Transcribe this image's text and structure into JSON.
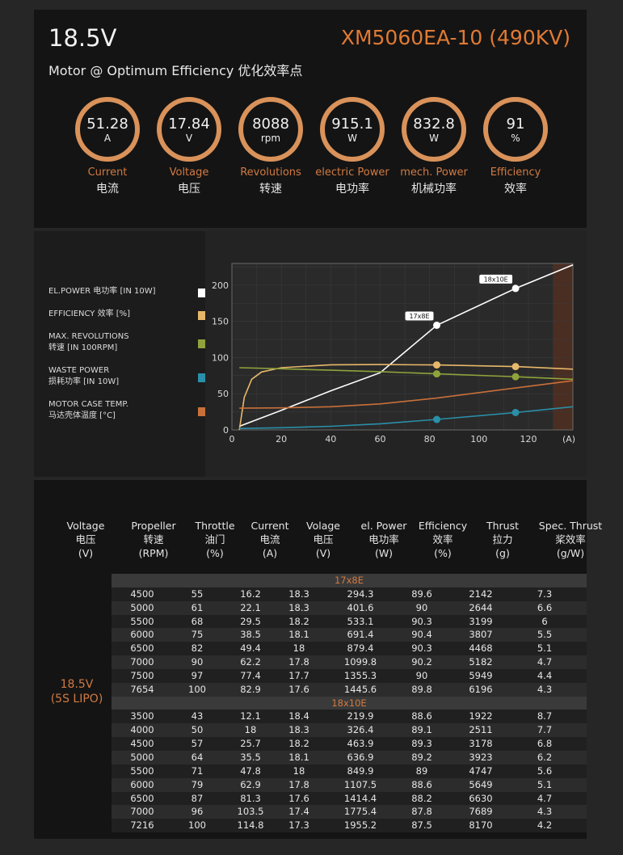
{
  "header": {
    "voltage": "18.5V",
    "model": "XM5060EA-10 (490KV)",
    "subtitle": "Motor @ Optimum Efficiency  优化效率点"
  },
  "gauges": [
    {
      "value": "51.28",
      "unit": "A",
      "label_en": "Current",
      "label_cn": "电流"
    },
    {
      "value": "17.84",
      "unit": "V",
      "label_en": "Voltage",
      "label_cn": "电压"
    },
    {
      "value": "8088",
      "unit": "rpm",
      "label_en": "Revolutions",
      "label_cn": "转速"
    },
    {
      "value": "915.1",
      "unit": "W",
      "label_en": "electric Power",
      "label_cn": "电功率"
    },
    {
      "value": "832.8",
      "unit": "W",
      "label_en": "mech. Power",
      "label_cn": "机械功率"
    },
    {
      "value": "91",
      "unit": "%",
      "label_en": "Efficiency",
      "label_cn": "效率"
    }
  ],
  "legend": [
    {
      "line1": "EL.POWER 电功率 [IN 10W]",
      "line2": "",
      "color": "#ffffff"
    },
    {
      "line1": "EFFICIENCY 效率 [%]",
      "line2": "",
      "color": "#e8b86a"
    },
    {
      "line1": "MAX. REVOLUTIONS",
      "line2": "转速 [IN 100RPM]",
      "color": "#8ea33c"
    },
    {
      "line1": "WASTE POWER",
      "line2": "损耗功率 [IN 10W]",
      "color": "#2a8fa8"
    },
    {
      "line1": "MOTOR CASE TEMP.",
      "line2": "马达壳体温度 [°C]",
      "color": "#c8703a"
    }
  ],
  "chart_data": {
    "type": "line",
    "x_tick_labels": [
      "0",
      "20",
      "40",
      "60",
      "80",
      "100",
      "120",
      "(A)"
    ],
    "y_tick_labels": [
      "0",
      "50",
      "100",
      "150",
      "200"
    ],
    "xlim": [
      0,
      138
    ],
    "ylim": [
      0,
      230
    ],
    "grid": true,
    "annotations": [
      {
        "text": "17x8E",
        "x": 82.9,
        "y": 144.6
      },
      {
        "text": "18x10E",
        "x": 114.8,
        "y": 195.5
      }
    ],
    "series": [
      {
        "color": "#ffffff",
        "x": [
          3,
          20,
          40,
          60,
          82.9,
          114.8,
          138
        ],
        "y": [
          5,
          27,
          54,
          79,
          144.6,
          195.5,
          228
        ]
      },
      {
        "color": "#e8b86a",
        "x": [
          3,
          5,
          8,
          12,
          20,
          40,
          60,
          82.9,
          114.8,
          138
        ],
        "y": [
          0,
          45,
          70,
          80,
          86,
          90,
          90.3,
          89.8,
          87.5,
          84
        ]
      },
      {
        "color": "#8ea33c",
        "x": [
          3,
          20,
          40,
          60,
          82.9,
          114.8,
          138
        ],
        "y": [
          86,
          84.5,
          82.5,
          80.5,
          77.5,
          73.5,
          70
        ]
      },
      {
        "color": "#2a8fa8",
        "x": [
          3,
          20,
          40,
          60,
          82.9,
          114.8,
          138
        ],
        "y": [
          2,
          3,
          5,
          8.5,
          14.5,
          24,
          32
        ]
      },
      {
        "color": "#c8703a",
        "x": [
          3,
          20,
          40,
          60,
          82.9,
          114.8,
          138
        ],
        "y": [
          30,
          30.5,
          32,
          36,
          44,
          58,
          68
        ]
      }
    ],
    "markers": [
      {
        "series": 0,
        "x": 82.9,
        "y": 144.6
      },
      {
        "series": 0,
        "x": 114.8,
        "y": 195.5
      },
      {
        "series": 1,
        "x": 82.9,
        "y": 89.8
      },
      {
        "series": 1,
        "x": 114.8,
        "y": 87.5
      },
      {
        "series": 2,
        "x": 82.9,
        "y": 77.5
      },
      {
        "series": 2,
        "x": 114.8,
        "y": 73.5
      },
      {
        "series": 3,
        "x": 82.9,
        "y": 14.5
      },
      {
        "series": 3,
        "x": 114.8,
        "y": 24
      }
    ]
  },
  "table": {
    "headers": [
      [
        "Voltage",
        "电压",
        "(V)"
      ],
      [
        "Propeller",
        "转速",
        "(RPM)"
      ],
      [
        "Throttle",
        "油门",
        "(%)"
      ],
      [
        "Current",
        "电流",
        "(A)"
      ],
      [
        "Volage",
        "电压",
        "(V)"
      ],
      [
        "el. Power",
        "电功率",
        "(W)"
      ],
      [
        "Efficiency",
        "效率",
        "(%)"
      ],
      [
        "Thrust",
        "拉力",
        "(g)"
      ],
      [
        "Spec. Thrust",
        "桨效率",
        "(g/W)"
      ]
    ],
    "voltage_line1": "18.5V",
    "voltage_line2": "(5S LIPO)",
    "groups": [
      {
        "propeller": "17x8E",
        "rows": [
          [
            "4500",
            "55",
            "16.2",
            "18.3",
            "294.3",
            "89.6",
            "2142",
            "7.3"
          ],
          [
            "5000",
            "61",
            "22.1",
            "18.3",
            "401.6",
            "90",
            "2644",
            "6.6"
          ],
          [
            "5500",
            "68",
            "29.5",
            "18.2",
            "533.1",
            "90.3",
            "3199",
            "6"
          ],
          [
            "6000",
            "75",
            "38.5",
            "18.1",
            "691.4",
            "90.4",
            "3807",
            "5.5"
          ],
          [
            "6500",
            "82",
            "49.4",
            "18",
            "879.4",
            "90.3",
            "4468",
            "5.1"
          ],
          [
            "7000",
            "90",
            "62.2",
            "17.8",
            "1099.8",
            "90.2",
            "5182",
            "4.7"
          ],
          [
            "7500",
            "97",
            "77.4",
            "17.7",
            "1355.3",
            "90",
            "5949",
            "4.4"
          ],
          [
            "7654",
            "100",
            "82.9",
            "17.6",
            "1445.6",
            "89.8",
            "6196",
            "4.3"
          ]
        ]
      },
      {
        "propeller": "18x10E",
        "rows": [
          [
            "3500",
            "43",
            "12.1",
            "18.4",
            "219.9",
            "88.6",
            "1922",
            "8.7"
          ],
          [
            "4000",
            "50",
            "18",
            "18.3",
            "326.4",
            "89.1",
            "2511",
            "7.7"
          ],
          [
            "4500",
            "57",
            "25.7",
            "18.2",
            "463.9",
            "89.3",
            "3178",
            "6.8"
          ],
          [
            "5000",
            "64",
            "35.5",
            "18.1",
            "636.9",
            "89.2",
            "3923",
            "6.2"
          ],
          [
            "5500",
            "71",
            "47.8",
            "18",
            "849.9",
            "89",
            "4747",
            "5.6"
          ],
          [
            "6000",
            "79",
            "62.9",
            "17.8",
            "1107.5",
            "88.6",
            "5649",
            "5.1"
          ],
          [
            "6500",
            "87",
            "81.3",
            "17.6",
            "1414.4",
            "88.2",
            "6630",
            "4.7"
          ],
          [
            "7000",
            "96",
            "103.5",
            "17.4",
            "1775.4",
            "87.8",
            "7689",
            "4.3"
          ],
          [
            "7216",
            "100",
            "114.8",
            "17.3",
            "1955.2",
            "87.5",
            "8170",
            "4.2"
          ]
        ]
      }
    ]
  }
}
